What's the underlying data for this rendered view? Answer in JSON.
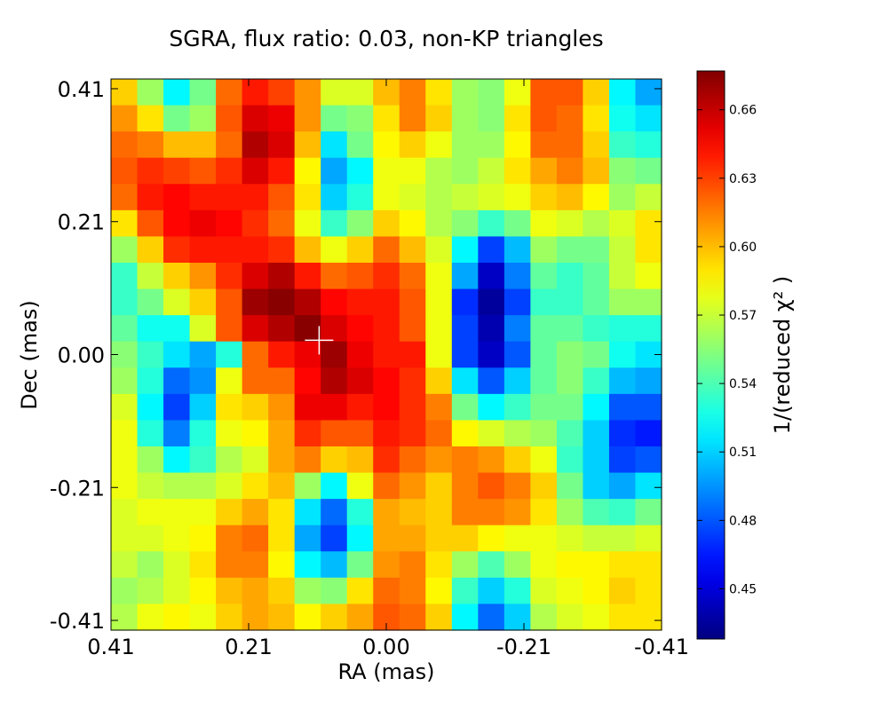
{
  "chart_data": {
    "type": "heatmap",
    "title": "SGRA, flux ratio: 0.03, non-KP triangles",
    "xlabel": "RA (mas)",
    "ylabel": "Dec (mas)",
    "xlim": [
      0.41,
      -0.41
    ],
    "ylim": [
      -0.425,
      0.425
    ],
    "xticks": [
      0.41,
      0.205,
      0.0,
      -0.205,
      -0.41
    ],
    "xtick_labels": [
      "0.41",
      "0.21",
      "0.00",
      "-0.21",
      "-0.41"
    ],
    "yticks": [
      0.41,
      0.205,
      0.0,
      -0.205,
      -0.41
    ],
    "ytick_labels": [
      "0.41",
      "0.21",
      "0.00",
      "-0.21",
      "-0.41"
    ],
    "colormap": "jet",
    "colorbar": {
      "label": "1/(reduced χ² )",
      "range": [
        0.428,
        0.677
      ],
      "ticks": [
        0.45,
        0.48,
        0.51,
        0.54,
        0.57,
        0.6,
        0.63,
        0.66
      ],
      "tick_labels": [
        "0.45",
        "0.48",
        "0.51",
        "0.54",
        "0.57",
        "0.60",
        "0.63",
        "0.66"
      ]
    },
    "marker": {
      "shape": "plus",
      "color": "#ffffff",
      "ra": 0.1,
      "dec": 0.022
    },
    "grid_note_rows": "rows top (Dec 0.41) to bottom (Dec -0.41), columns left (RA 0.41) to right (RA -0.41)",
    "values": [
      [
        0.595,
        0.56,
        0.52,
        0.55,
        0.62,
        0.64,
        0.63,
        0.61,
        0.575,
        0.575,
        0.6,
        0.615,
        0.59,
        0.56,
        0.555,
        0.58,
        0.625,
        0.625,
        0.595,
        0.52,
        0.5
      ],
      [
        0.61,
        0.59,
        0.55,
        0.56,
        0.625,
        0.655,
        0.65,
        0.61,
        0.55,
        0.555,
        0.59,
        0.615,
        0.595,
        0.56,
        0.555,
        0.59,
        0.625,
        0.62,
        0.59,
        0.525,
        0.515
      ],
      [
        0.62,
        0.615,
        0.6,
        0.6,
        0.62,
        0.665,
        0.655,
        0.6,
        0.515,
        0.55,
        0.585,
        0.595,
        0.58,
        0.56,
        0.56,
        0.585,
        0.62,
        0.62,
        0.595,
        0.535,
        0.53
      ],
      [
        0.625,
        0.635,
        0.63,
        0.625,
        0.635,
        0.655,
        0.64,
        0.585,
        0.5,
        0.52,
        0.58,
        0.58,
        0.565,
        0.56,
        0.57,
        0.59,
        0.605,
        0.615,
        0.6,
        0.555,
        0.55
      ],
      [
        0.62,
        0.64,
        0.645,
        0.64,
        0.64,
        0.64,
        0.625,
        0.59,
        0.51,
        0.53,
        0.58,
        0.575,
        0.565,
        0.57,
        0.575,
        0.58,
        0.595,
        0.6,
        0.585,
        0.56,
        0.57
      ],
      [
        0.59,
        0.625,
        0.645,
        0.65,
        0.645,
        0.635,
        0.62,
        0.58,
        0.535,
        0.555,
        0.595,
        0.585,
        0.565,
        0.555,
        0.535,
        0.55,
        0.58,
        0.575,
        0.565,
        0.575,
        0.59
      ],
      [
        0.56,
        0.595,
        0.635,
        0.64,
        0.64,
        0.64,
        0.635,
        0.6,
        0.58,
        0.595,
        0.62,
        0.6,
        0.575,
        0.52,
        0.475,
        0.505,
        0.56,
        0.55,
        0.55,
        0.57,
        0.59
      ],
      [
        0.535,
        0.57,
        0.595,
        0.61,
        0.635,
        0.655,
        0.665,
        0.64,
        0.62,
        0.625,
        0.635,
        0.62,
        0.58,
        0.5,
        0.445,
        0.49,
        0.545,
        0.535,
        0.545,
        0.57,
        0.58
      ],
      [
        0.535,
        0.55,
        0.575,
        0.595,
        0.625,
        0.67,
        0.675,
        0.665,
        0.645,
        0.64,
        0.64,
        0.625,
        0.58,
        0.47,
        0.435,
        0.475,
        0.535,
        0.535,
        0.545,
        0.56,
        0.56
      ],
      [
        0.545,
        0.525,
        0.525,
        0.575,
        0.625,
        0.655,
        0.665,
        0.675,
        0.655,
        0.645,
        0.64,
        0.625,
        0.58,
        0.475,
        0.44,
        0.49,
        0.545,
        0.545,
        0.535,
        0.53,
        0.53
      ],
      [
        0.555,
        0.535,
        0.515,
        0.5,
        0.53,
        0.62,
        0.64,
        0.65,
        0.67,
        0.65,
        0.64,
        0.64,
        0.58,
        0.475,
        0.445,
        0.48,
        0.545,
        0.555,
        0.55,
        0.525,
        0.515
      ],
      [
        0.56,
        0.53,
        0.485,
        0.495,
        0.58,
        0.62,
        0.62,
        0.645,
        0.665,
        0.655,
        0.645,
        0.635,
        0.595,
        0.515,
        0.48,
        0.51,
        0.545,
        0.555,
        0.535,
        0.505,
        0.5
      ],
      [
        0.575,
        0.52,
        0.475,
        0.51,
        0.59,
        0.595,
        0.61,
        0.65,
        0.65,
        0.64,
        0.645,
        0.635,
        0.615,
        0.55,
        0.52,
        0.535,
        0.55,
        0.55,
        0.52,
        0.48,
        0.48
      ],
      [
        0.58,
        0.53,
        0.49,
        0.53,
        0.58,
        0.585,
        0.605,
        0.635,
        0.625,
        0.625,
        0.64,
        0.635,
        0.62,
        0.585,
        0.575,
        0.565,
        0.56,
        0.54,
        0.51,
        0.47,
        0.465
      ],
      [
        0.58,
        0.56,
        0.52,
        0.535,
        0.565,
        0.575,
        0.605,
        0.615,
        0.595,
        0.6,
        0.635,
        0.62,
        0.61,
        0.615,
        0.61,
        0.595,
        0.58,
        0.535,
        0.51,
        0.475,
        0.48
      ],
      [
        0.58,
        0.57,
        0.565,
        0.565,
        0.575,
        0.59,
        0.6,
        0.56,
        0.52,
        0.58,
        0.62,
        0.61,
        0.595,
        0.615,
        0.625,
        0.615,
        0.595,
        0.55,
        0.51,
        0.5,
        0.515
      ],
      [
        0.575,
        0.58,
        0.58,
        0.58,
        0.595,
        0.605,
        0.59,
        0.515,
        0.485,
        0.53,
        0.605,
        0.6,
        0.595,
        0.615,
        0.615,
        0.61,
        0.59,
        0.56,
        0.54,
        0.535,
        0.55
      ],
      [
        0.575,
        0.575,
        0.58,
        0.585,
        0.615,
        0.62,
        0.59,
        0.5,
        0.475,
        0.52,
        0.605,
        0.605,
        0.595,
        0.595,
        0.585,
        0.58,
        0.58,
        0.575,
        0.57,
        0.57,
        0.575
      ],
      [
        0.57,
        0.56,
        0.575,
        0.59,
        0.615,
        0.615,
        0.585,
        0.52,
        0.505,
        0.55,
        0.61,
        0.615,
        0.59,
        0.56,
        0.54,
        0.56,
        0.58,
        0.585,
        0.585,
        0.59,
        0.59
      ],
      [
        0.56,
        0.565,
        0.575,
        0.585,
        0.6,
        0.605,
        0.595,
        0.56,
        0.555,
        0.59,
        0.62,
        0.615,
        0.585,
        0.535,
        0.51,
        0.53,
        0.575,
        0.58,
        0.585,
        0.595,
        0.59
      ],
      [
        0.565,
        0.58,
        0.585,
        0.58,
        0.595,
        0.605,
        0.6,
        0.585,
        0.595,
        0.605,
        0.625,
        0.62,
        0.595,
        0.52,
        0.485,
        0.51,
        0.565,
        0.575,
        0.58,
        0.59,
        0.59
      ]
    ]
  }
}
